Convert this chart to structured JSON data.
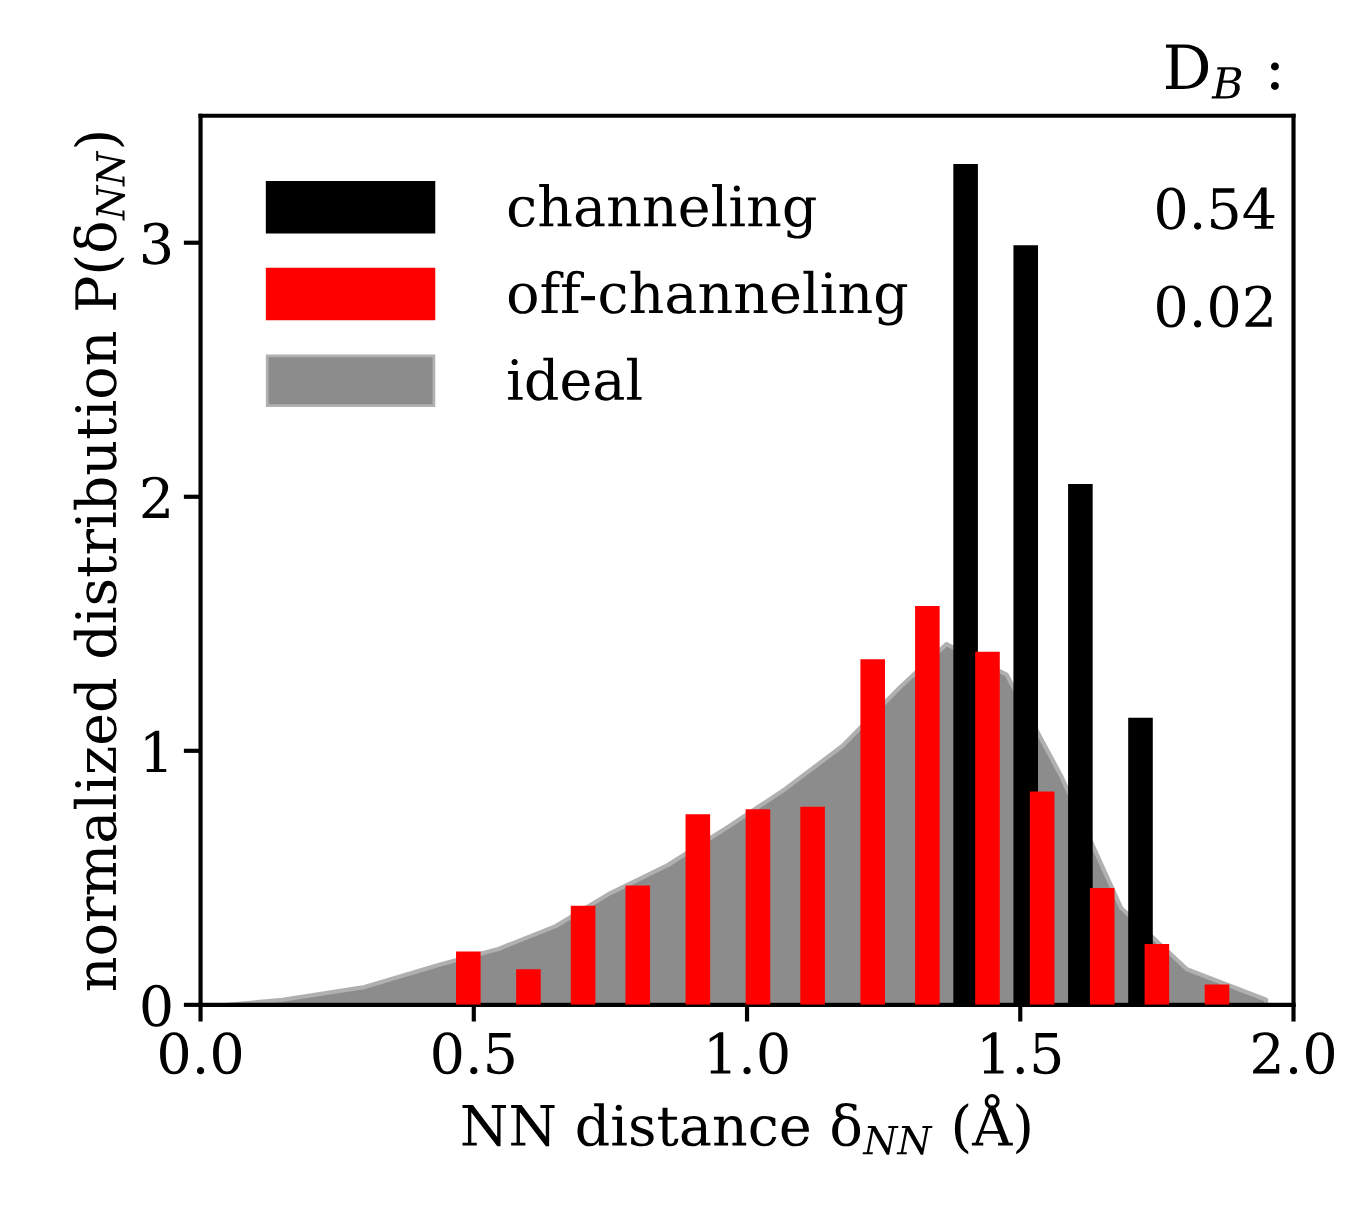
{
  "chart_data": {
    "type": "bar",
    "xlabel": "NN distance δ$_{NN}$ (Å)",
    "ylabel": "normalized distribution P(δ$_{NN}$)",
    "annotations": [
      "D$_{B}$ :",
      "0.54",
      "0.02"
    ],
    "series": [
      {
        "name": "channeling",
        "color": "#000000",
        "x": [
          1.4,
          1.51,
          1.61,
          1.72
        ],
        "values": [
          3.31,
          2.99,
          2.05,
          1.13
        ]
      },
      {
        "name": "off-channeling",
        "color": "#ff0000",
        "x": [
          0.49,
          0.6,
          0.7,
          0.8,
          0.91,
          1.02,
          1.12,
          1.23,
          1.33,
          1.44,
          1.54,
          1.65,
          1.75,
          1.86
        ],
        "values": [
          0.21,
          0.14,
          0.39,
          0.47,
          0.75,
          0.77,
          0.78,
          1.36,
          1.57,
          1.39,
          0.84,
          0.46,
          0.24,
          0.08
        ]
      },
      {
        "name": "ideal",
        "type": "area",
        "color": "#8c8c8c",
        "x": [
          0.05,
          0.15,
          0.3,
          0.44,
          0.545,
          0.65,
          0.75,
          0.855,
          0.965,
          1.07,
          1.175,
          1.28,
          1.365,
          1.475,
          1.575,
          1.685,
          1.805,
          1.95
        ],
        "values": [
          0,
          0.02,
          0.07,
          0.16,
          0.22,
          0.31,
          0.44,
          0.55,
          0.7,
          0.85,
          1.02,
          1.25,
          1.42,
          1.3,
          0.9,
          0.38,
          0.14,
          0.02
        ]
      }
    ],
    "xlim": [
      0.0,
      2.0
    ],
    "xticks": [
      {
        "value": 0,
        "label": "0.0"
      },
      {
        "value": 0.5,
        "label": "0.5"
      },
      {
        "value": 1,
        "label": "1.0"
      },
      {
        "value": 1.5,
        "label": "1.5"
      },
      {
        "value": 2,
        "label": "2.0"
      }
    ],
    "ylim": [
      0,
      3.5
    ],
    "yticks": [
      0,
      1,
      2,
      3
    ],
    "legend": "top left",
    "grid": false
  }
}
